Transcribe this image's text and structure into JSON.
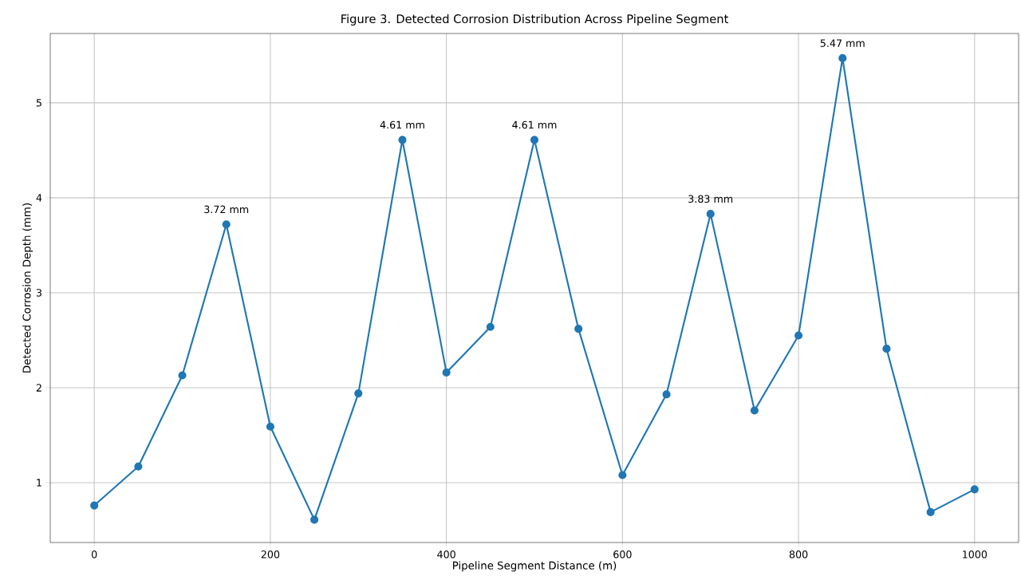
{
  "chart_data": {
    "type": "line",
    "title": "Figure 3. Detected Corrosion Distribution Across Pipeline Segment",
    "xlabel": "Pipeline Segment Distance (m)",
    "ylabel": "Detected Corrosion Depth (mm)",
    "x": [
      0,
      50,
      100,
      150,
      200,
      250,
      300,
      350,
      400,
      450,
      500,
      550,
      600,
      650,
      700,
      750,
      800,
      850,
      900,
      950,
      1000
    ],
    "series": [
      {
        "color": "#1f77b4",
        "values": [
          0.76,
          1.17,
          2.13,
          3.72,
          1.59,
          0.61,
          1.94,
          4.61,
          2.16,
          2.64,
          4.61,
          2.62,
          1.08,
          1.93,
          3.83,
          1.76,
          2.55,
          5.47,
          2.41,
          0.69,
          0.93
        ]
      }
    ],
    "xlim": [
      -50,
      1050
    ],
    "ylim": [
      0.37,
      5.73
    ],
    "xticks": [
      0,
      200,
      400,
      600,
      800,
      1000
    ],
    "yticks": [
      1,
      2,
      3,
      4,
      5
    ],
    "grid": true,
    "marker": "circle",
    "line_style": "solid",
    "annotations": [
      {
        "text": "3.72 mm",
        "x": 150,
        "y": 3.72
      },
      {
        "text": "4.61 mm",
        "x": 350,
        "y": 4.61
      },
      {
        "text": "4.61 mm",
        "x": 500,
        "y": 4.61
      },
      {
        "text": "3.83 mm",
        "x": 700,
        "y": 3.83
      },
      {
        "text": "5.47 mm",
        "x": 850,
        "y": 5.47
      }
    ]
  }
}
